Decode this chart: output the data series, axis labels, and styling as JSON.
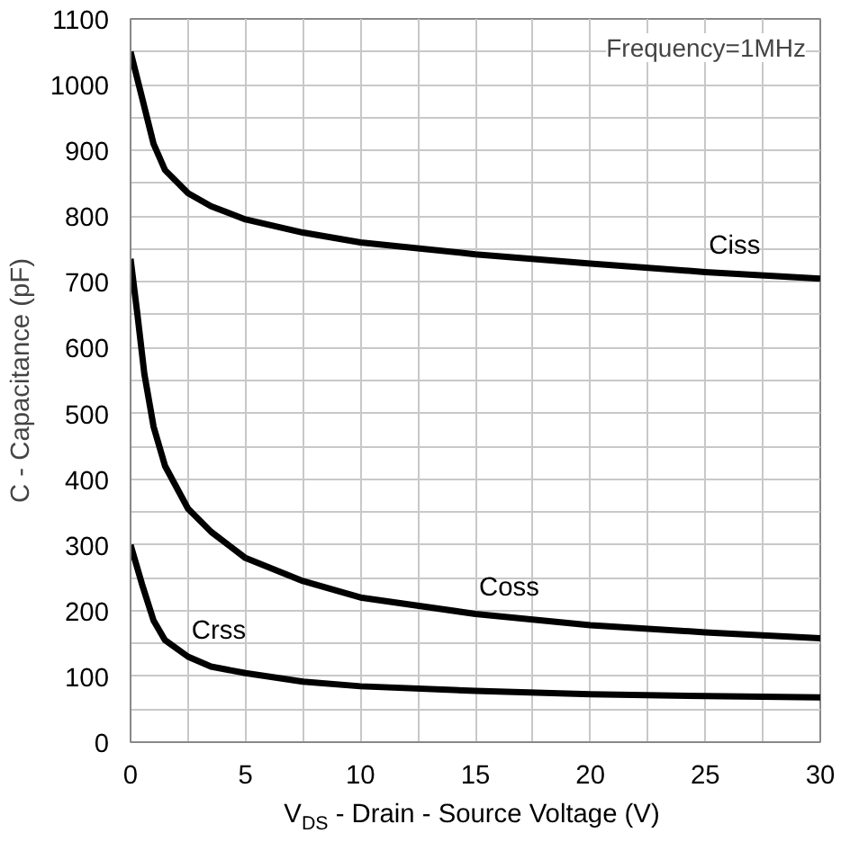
{
  "chart_data": {
    "type": "line",
    "xlabel": "V$_{DS}$ - Drain - Source Voltage (V)",
    "ylabel": "C - Capacitance (pF)",
    "annotations": [
      "Frequency=1MHz"
    ],
    "xlim": [
      0,
      30
    ],
    "ylim": [
      0,
      1100
    ],
    "xticks": [
      0,
      {
        "value": 2.5,
        "label": null
      },
      5,
      {
        "value": 7.5,
        "label": null
      },
      10,
      {
        "value": 12.5,
        "label": null
      },
      15,
      {
        "value": 17.5,
        "label": null
      },
      20,
      {
        "value": 22.5,
        "label": null
      },
      25,
      {
        "value": 27.5,
        "label": null
      },
      30
    ],
    "yticks": [
      0,
      {
        "value": 50,
        "label": null
      },
      100,
      {
        "value": 150,
        "label": null
      },
      200,
      {
        "value": 250,
        "label": null
      },
      300,
      {
        "value": 350,
        "label": null
      },
      400,
      {
        "value": 450,
        "label": null
      },
      500,
      {
        "value": 550,
        "label": null
      },
      600,
      {
        "value": 650,
        "label": null
      },
      700,
      {
        "value": 750,
        "label": null
      },
      800,
      {
        "value": 850,
        "label": null
      },
      900,
      {
        "value": 950,
        "label": null
      },
      1000,
      {
        "value": 1050,
        "label": null
      },
      1100
    ],
    "grid": true,
    "marker": "none",
    "line_style": "solid",
    "series": [
      {
        "name": "Ciss",
        "color": "#000000",
        "x": [
          0,
          0.5,
          1,
          1.5,
          2.5,
          3.5,
          5,
          7.5,
          10,
          15,
          20,
          25,
          30
        ],
        "values": [
          1050,
          980,
          910,
          870,
          835,
          815,
          795,
          775,
          760,
          742,
          728,
          715,
          705
        ]
      },
      {
        "name": "Coss",
        "color": "#000000",
        "x": [
          0,
          0.3,
          0.6,
          1,
          1.5,
          2.5,
          3.5,
          5,
          7.5,
          10,
          15,
          20,
          25,
          30
        ],
        "values": [
          735,
          650,
          560,
          480,
          420,
          355,
          320,
          280,
          245,
          220,
          195,
          178,
          167,
          158
        ]
      },
      {
        "name": "Crss",
        "color": "#000000",
        "x": [
          0,
          0.5,
          1,
          1.5,
          2.5,
          3.5,
          5,
          7.5,
          10,
          15,
          20,
          25,
          30
        ],
        "values": [
          300,
          240,
          185,
          155,
          130,
          115,
          105,
          92,
          85,
          78,
          73,
          70,
          68
        ]
      }
    ]
  }
}
